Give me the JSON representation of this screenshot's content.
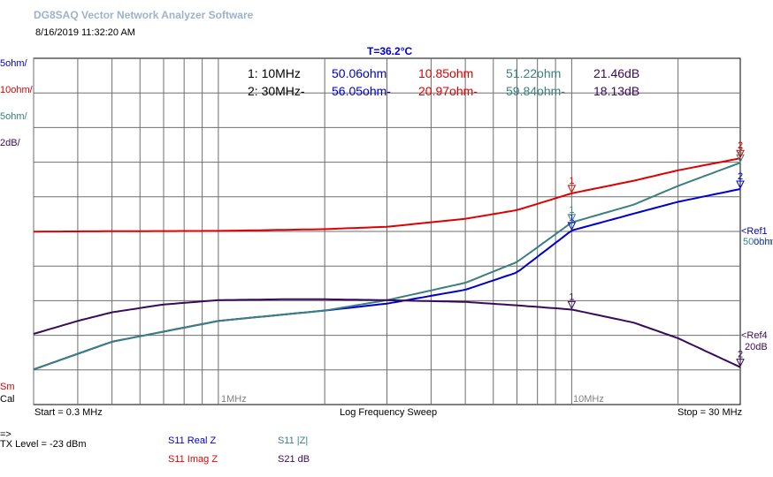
{
  "header": {
    "app_title": "DG8SAQ Vector Network Analyzer Software",
    "timestamp": "8/16/2019   11:32:20 AM",
    "temperature": "T=36.2°C"
  },
  "scales": [
    {
      "label": "5ohm/",
      "color": "#0000cc"
    },
    {
      "label": "10ohm/",
      "color": "#e00000"
    },
    {
      "label": "5ohm/",
      "color": "#3a8080"
    },
    {
      "label": "2dB/",
      "color": "#3a0a5a"
    }
  ],
  "bottom_left": {
    "sm": "Sm",
    "cal": "Cal"
  },
  "markers": [
    {
      "label": "1: 10MHz",
      "real_z": "50.06ohm",
      "imag_z": "10.85ohm",
      "abs_z": "51.22ohm",
      "s21": "21.46dB"
    },
    {
      "label": "2: 30MHz-",
      "real_z": "56.05ohm-",
      "imag_z": "20.97ohm-",
      "abs_z": "59.84ohm-",
      "s21": "18.13dB"
    }
  ],
  "ref_labels": {
    "ref1": "<Ref1",
    "ref1_val": "50ohm",
    "ref_hidden": "0ohm",
    "ref4": "<Ref4",
    "ref4_val": "20dB"
  },
  "footer": {
    "start": "Start = 0.3 MHz",
    "sweep": "Log Frequency Sweep",
    "stop": "Stop = 30 MHz",
    "arrow": "=>",
    "tx_level": "TX Level = -23 dBm"
  },
  "legend": [
    {
      "label": "S11  Real Z",
      "color": "#0000cc"
    },
    {
      "label": "S11  |Z|",
      "color": "#3a8080"
    },
    {
      "label": "S11  Imag Z",
      "color": "#e00000"
    },
    {
      "label": "S21  dB",
      "color": "#3a0a5a"
    }
  ],
  "chart_data": {
    "type": "line",
    "x_scale": "log",
    "xlim_mhz": [
      0.3,
      30
    ],
    "x_tick_labels": [
      "1MHz",
      "10MHz"
    ],
    "series": [
      {
        "name": "S11  Real Z",
        "unit": "ohm",
        "color": "#0000cc",
        "x": [
          0.3,
          0.5,
          1,
          2,
          3,
          5,
          7,
          10,
          15,
          20,
          30
        ],
        "y": [
          30,
          34,
          37,
          38.5,
          39.5,
          41.5,
          44,
          50.06,
          52.5,
          54.2,
          56.05
        ]
      },
      {
        "name": "S11  |Z|",
        "unit": "ohm",
        "color": "#3a8080",
        "x": [
          0.3,
          0.5,
          1,
          2,
          3,
          5,
          7,
          10,
          15,
          20,
          30
        ],
        "y": [
          30,
          34,
          37,
          38.5,
          40,
          42.5,
          45.5,
          51.22,
          53.8,
          56.5,
          59.84
        ]
      },
      {
        "name": "S11  Imag Z",
        "unit": "ohm",
        "color": "#e00000",
        "x": [
          0.3,
          0.5,
          1,
          2,
          3,
          5,
          7,
          10,
          15,
          20,
          30
        ],
        "y": [
          -0.2,
          -0.1,
          0,
          0.5,
          1.2,
          3.5,
          6,
          10.85,
          14.5,
          17.5,
          20.97
        ]
      },
      {
        "name": "S21  dB",
        "unit": "dB",
        "color": "#3a0a5a",
        "x": [
          0.3,
          0.4,
          0.5,
          0.7,
          1,
          1.5,
          2,
          3,
          5,
          7,
          10,
          15,
          20,
          30
        ],
        "y": [
          20.05,
          20.8,
          21.3,
          21.75,
          22,
          22.05,
          22.05,
          22,
          21.9,
          21.7,
          21.46,
          20.7,
          19.8,
          18.13
        ]
      }
    ],
    "markers_mhz": [
      10,
      30
    ]
  }
}
